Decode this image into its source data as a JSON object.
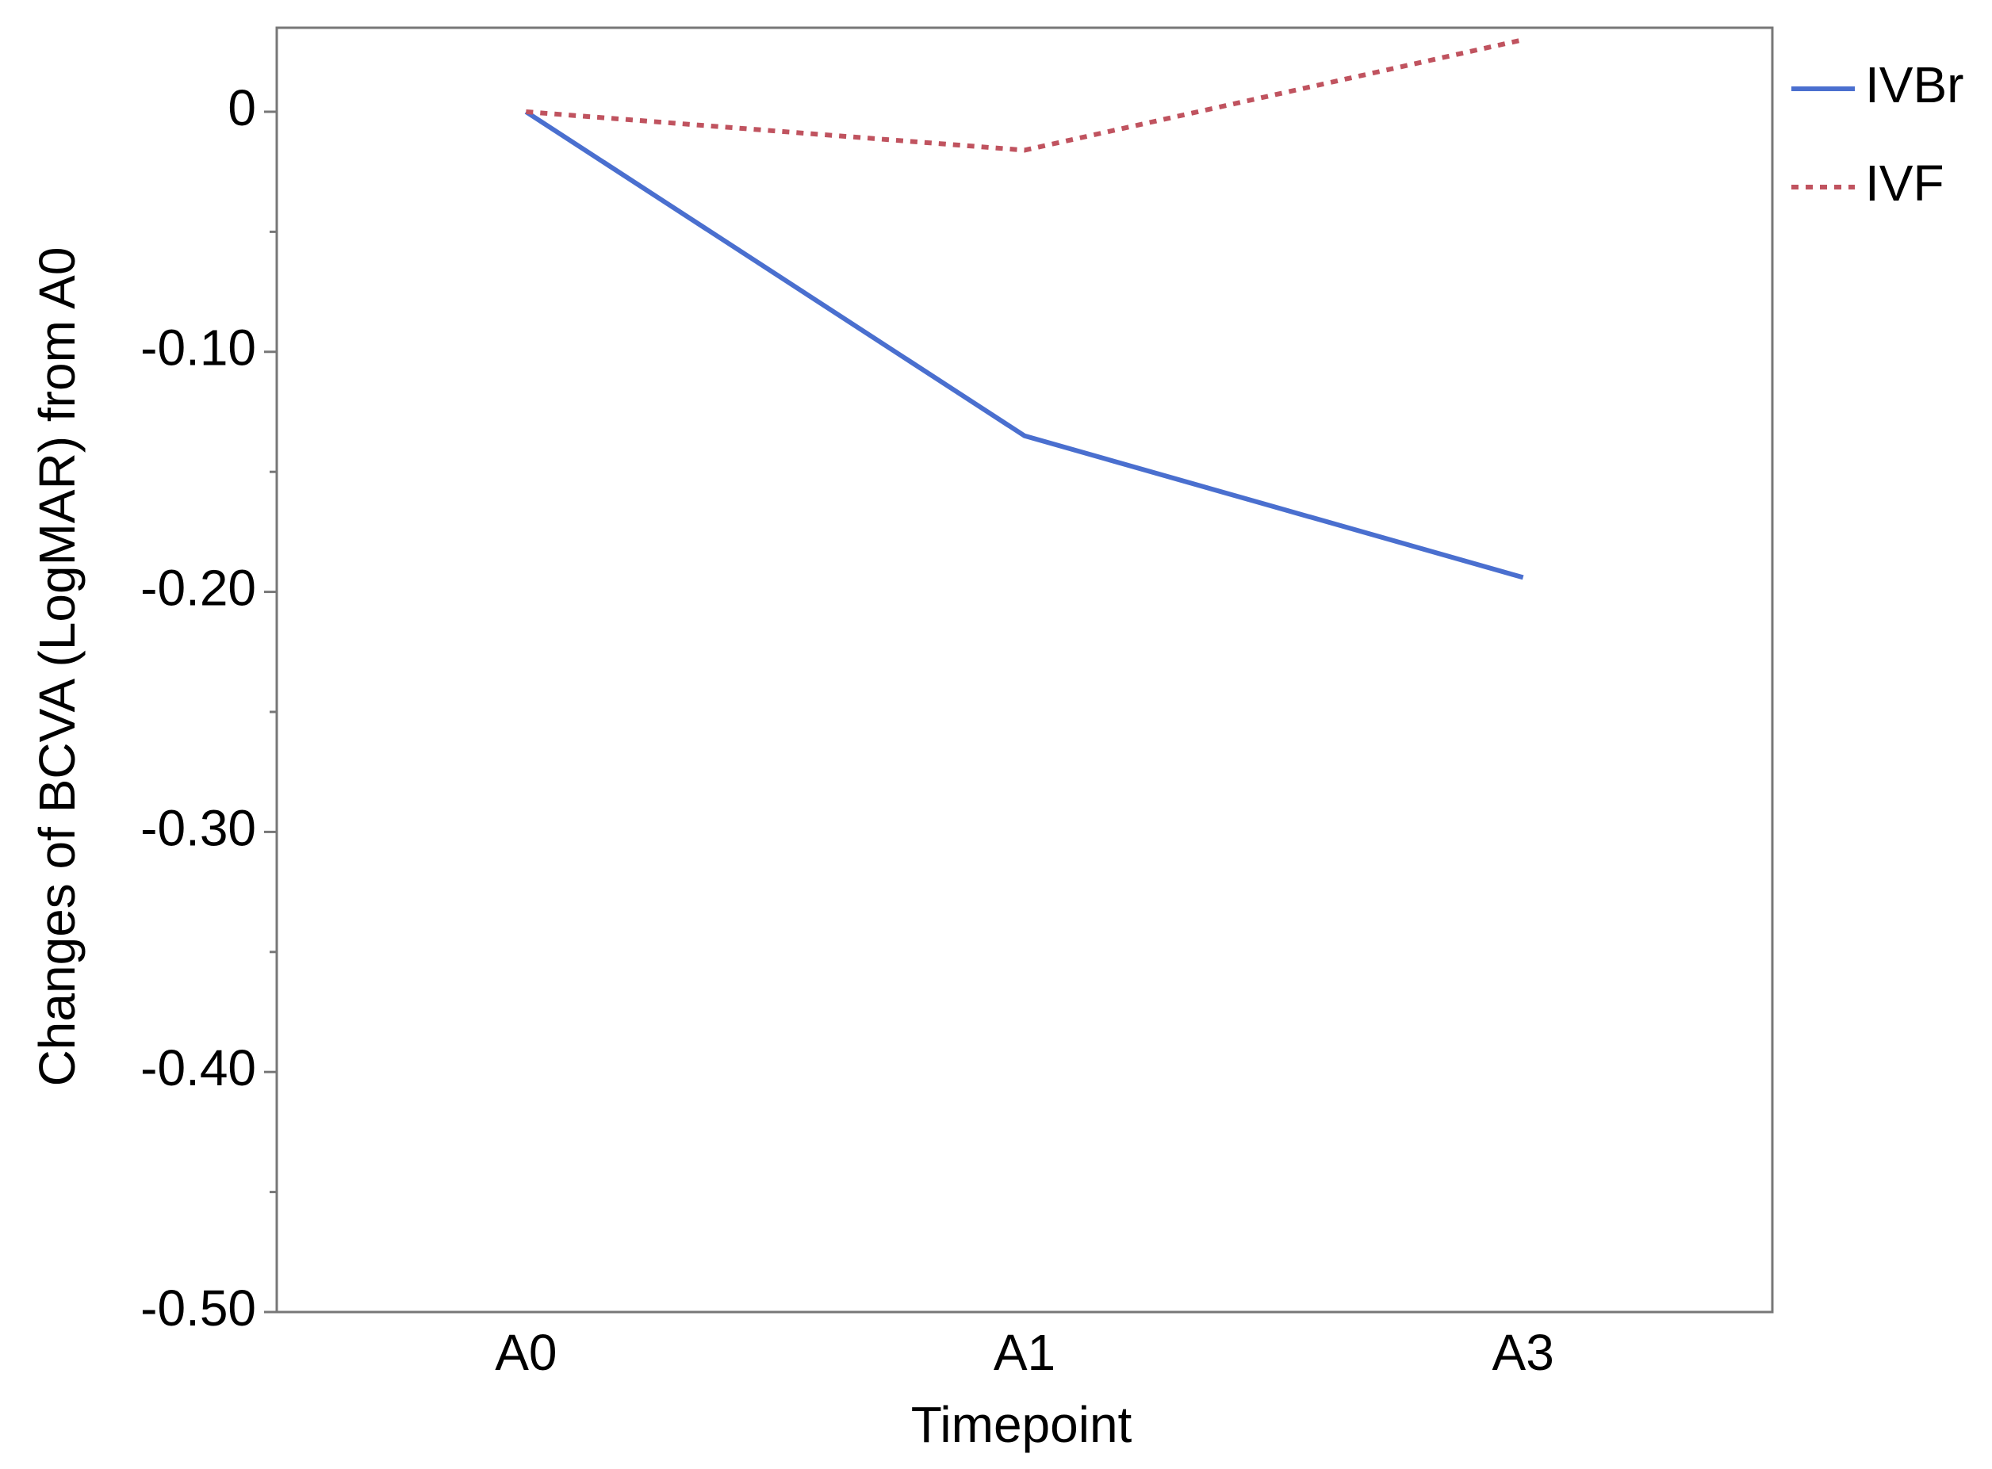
{
  "chart_data": {
    "type": "line",
    "x_label": "Timepoint",
    "y_label": "Changes of BCVA (LogMAR) from A0",
    "categories": [
      "A0",
      "A1",
      "A3"
    ],
    "series": [
      {
        "name": "IVBr",
        "color": "#4a6fcf",
        "line_style": "solid",
        "values": [
          0,
          -0.135,
          -0.194
        ]
      },
      {
        "name": "IVF",
        "color": "#c0535f",
        "line_style": "dotted",
        "values": [
          0,
          -0.016,
          0.03
        ]
      }
    ],
    "ylim": [
      -0.5,
      0.035
    ],
    "yticks": [
      0,
      {
        "value": -0.1,
        "label": "-0.10"
      },
      {
        "value": -0.2,
        "label": "-0.20"
      },
      {
        "value": -0.3,
        "label": "-0.30"
      },
      {
        "value": -0.4,
        "label": "-0.40"
      },
      {
        "value": -0.5,
        "label": "-0.50"
      }
    ],
    "yminor_ticks": [
      -0.05,
      -0.15,
      -0.25,
      -0.35,
      -0.45
    ],
    "grid": false,
    "legend": "right"
  }
}
